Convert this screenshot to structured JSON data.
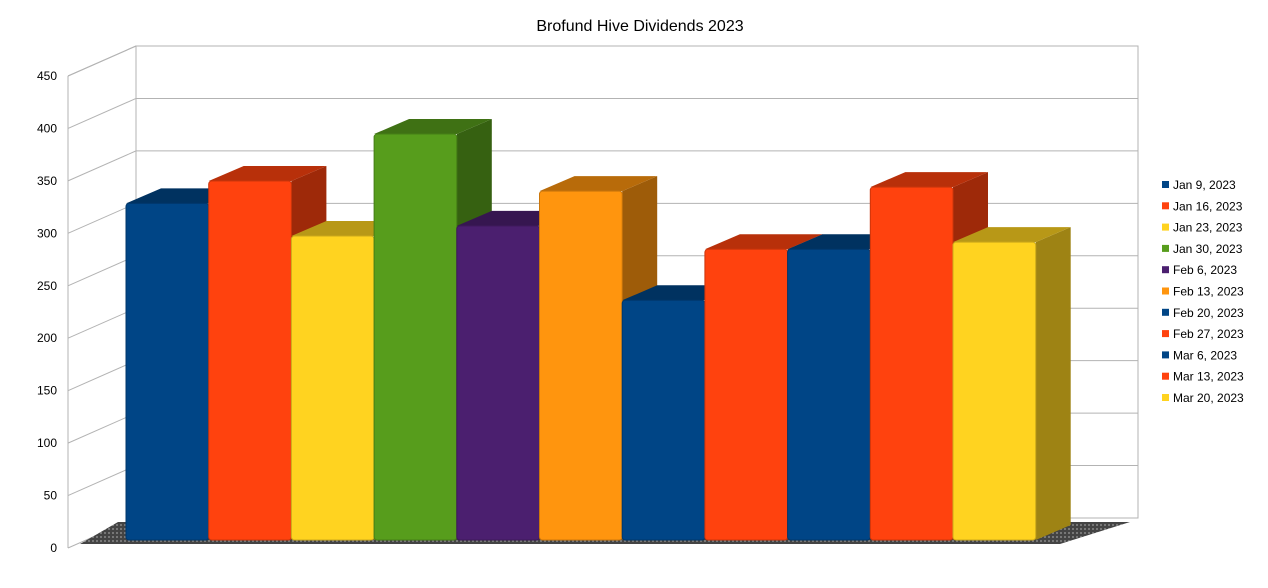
{
  "chart_data": {
    "type": "bar",
    "title": "Brofund Hive Dividends 2023",
    "xlabel": "",
    "ylabel": "",
    "ylim": [
      0,
      450
    ],
    "yticks": [
      0,
      50,
      100,
      150,
      200,
      250,
      300,
      350,
      400,
      450
    ],
    "grid": true,
    "legend_position": "right",
    "series": [
      {
        "name": "Jan 9, 2023",
        "value": 330,
        "color": "#004586"
      },
      {
        "name": "Jan 16, 2023",
        "value": 352,
        "color": "#ff420e"
      },
      {
        "name": "Jan 23, 2023",
        "value": 298,
        "color": "#ffd320"
      },
      {
        "name": "Jan 30, 2023",
        "value": 398,
        "color": "#579d1c"
      },
      {
        "name": "Feb 6, 2023",
        "value": 308,
        "color": "#4b1f6f"
      },
      {
        "name": "Feb 13, 2023",
        "value": 342,
        "color": "#ff950e"
      },
      {
        "name": "Feb 20, 2023",
        "value": 235,
        "color": "#004586"
      },
      {
        "name": "Feb 27, 2023",
        "value": 285,
        "color": "#ff420e"
      },
      {
        "name": "Mar 6, 2023",
        "value": 285,
        "color": "#004586"
      },
      {
        "name": "Mar 13, 2023",
        "value": 346,
        "color": "#ff420e"
      },
      {
        "name": "Mar 20, 2023",
        "value": 292,
        "color": "#ffd320"
      }
    ]
  }
}
